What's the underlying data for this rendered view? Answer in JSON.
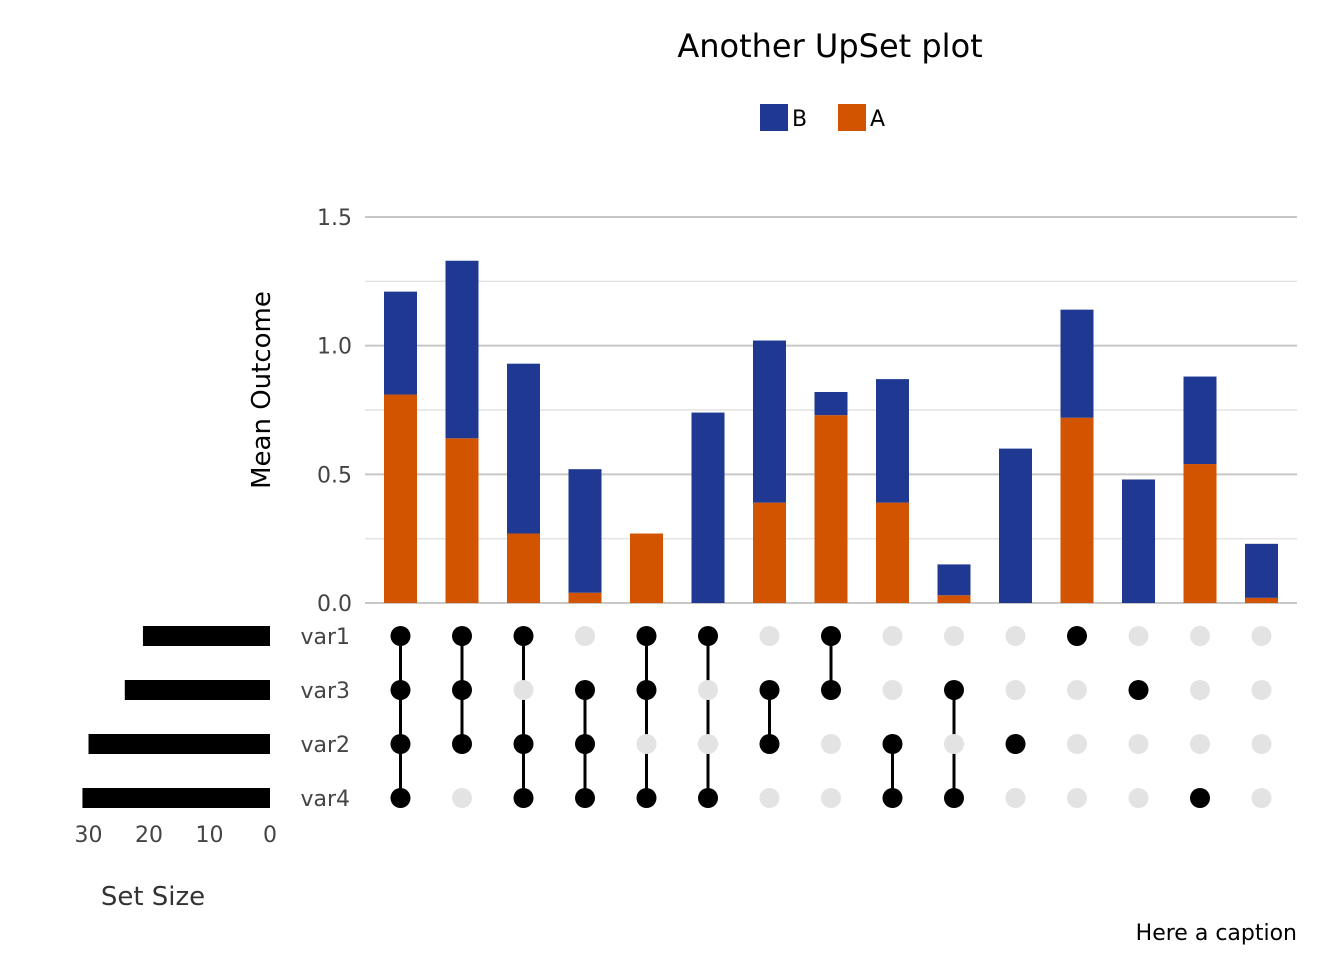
{
  "chart_data": {
    "type": "bar",
    "title": "Another UpSet plot",
    "caption": "Here a caption",
    "ylabel": "Mean Outcome",
    "ylim": [
      0,
      1.5
    ],
    "y_ticks": [
      "0.0",
      "0.5",
      "1.0",
      "1.5"
    ],
    "stacked": true,
    "legend": {
      "position": "top",
      "entries": [
        {
          "name": "B",
          "color": "#1f3993"
        },
        {
          "name": "A",
          "color": "#d35400"
        }
      ]
    },
    "series": [
      {
        "name": "A",
        "color": "#d35400",
        "values": [
          0.81,
          0.64,
          0.27,
          0.04,
          0.27,
          0.0,
          0.39,
          0.73,
          0.39,
          0.03,
          0.0,
          0.72,
          0.0,
          0.54,
          0.02
        ]
      },
      {
        "name": "B",
        "color": "#1f3993",
        "values": [
          0.4,
          0.69,
          0.66,
          0.48,
          0.0,
          0.74,
          0.63,
          0.09,
          0.48,
          0.12,
          0.6,
          0.42,
          0.48,
          0.34,
          0.21
        ]
      }
    ],
    "sets": [
      "var1",
      "var3",
      "var2",
      "var4"
    ],
    "intersections": [
      [
        "var1",
        "var3",
        "var2",
        "var4"
      ],
      [
        "var1",
        "var3",
        "var2"
      ],
      [
        "var1",
        "var2",
        "var4"
      ],
      [
        "var3",
        "var2",
        "var4"
      ],
      [
        "var1",
        "var3",
        "var4"
      ],
      [
        "var1",
        "var4"
      ],
      [
        "var3",
        "var2"
      ],
      [
        "var1",
        "var3"
      ],
      [
        "var2",
        "var4"
      ],
      [
        "var3",
        "var4"
      ],
      [
        "var2"
      ],
      [
        "var1"
      ],
      [
        "var3"
      ],
      [
        "var4"
      ],
      []
    ],
    "set_size": {
      "xlabel": "Set Size",
      "x_ticks": [
        "30",
        "20",
        "10",
        "0"
      ],
      "xlim": [
        0,
        33
      ],
      "values": {
        "var1": 21,
        "var3": 24,
        "var2": 30,
        "var4": 31
      }
    }
  }
}
